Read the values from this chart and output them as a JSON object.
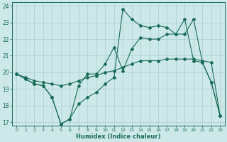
{
  "xlabel": "Humidex (Indice chaleur)",
  "bg_color": "#cce8e8",
  "grid_color": "#aacfcf",
  "line_color": "#1a6b5a",
  "xlim": [
    -0.5,
    23.5
  ],
  "ylim": [
    16.8,
    24.2
  ],
  "yticks": [
    17,
    18,
    19,
    20,
    21,
    22,
    23,
    24
  ],
  "xticks": [
    0,
    1,
    2,
    3,
    4,
    5,
    6,
    7,
    8,
    9,
    10,
    11,
    12,
    13,
    14,
    15,
    16,
    17,
    18,
    19,
    20,
    21,
    22,
    23
  ],
  "line1_x": [
    0,
    1,
    2,
    3,
    4,
    5,
    6,
    7,
    8,
    9,
    10,
    11,
    12,
    13,
    14,
    15,
    16,
    17,
    18,
    19,
    20,
    21,
    22,
    23
  ],
  "line1_y": [
    19.9,
    19.6,
    19.3,
    19.2,
    18.5,
    16.9,
    17.2,
    18.1,
    18.5,
    18.8,
    19.3,
    19.7,
    23.8,
    23.2,
    22.8,
    22.7,
    22.8,
    22.7,
    22.3,
    23.2,
    20.7,
    20.6,
    19.4,
    17.4
  ],
  "line2_x": [
    0,
    1,
    2,
    3,
    4,
    5,
    6,
    7,
    8,
    9,
    10,
    11,
    12,
    13,
    14,
    15,
    16,
    17,
    18,
    19,
    20,
    21,
    22,
    23
  ],
  "line2_y": [
    19.9,
    19.7,
    19.5,
    19.4,
    19.3,
    19.2,
    19.3,
    19.5,
    19.7,
    19.8,
    20.0,
    20.1,
    20.3,
    20.5,
    20.7,
    20.7,
    20.7,
    20.8,
    20.8,
    20.8,
    20.8,
    20.7,
    20.6,
    17.4
  ],
  "line3_x": [
    0,
    1,
    2,
    3,
    4,
    5,
    6,
    7,
    8,
    9,
    10,
    11,
    12,
    13,
    14,
    15,
    16,
    17,
    18,
    19,
    20,
    21,
    22,
    23
  ],
  "line3_y": [
    19.9,
    19.6,
    19.3,
    19.2,
    18.5,
    16.9,
    17.2,
    19.2,
    19.9,
    19.9,
    20.5,
    21.5,
    20.1,
    21.4,
    22.1,
    22.0,
    22.0,
    22.3,
    22.3,
    22.3,
    23.2,
    20.6,
    19.4,
    17.4
  ]
}
